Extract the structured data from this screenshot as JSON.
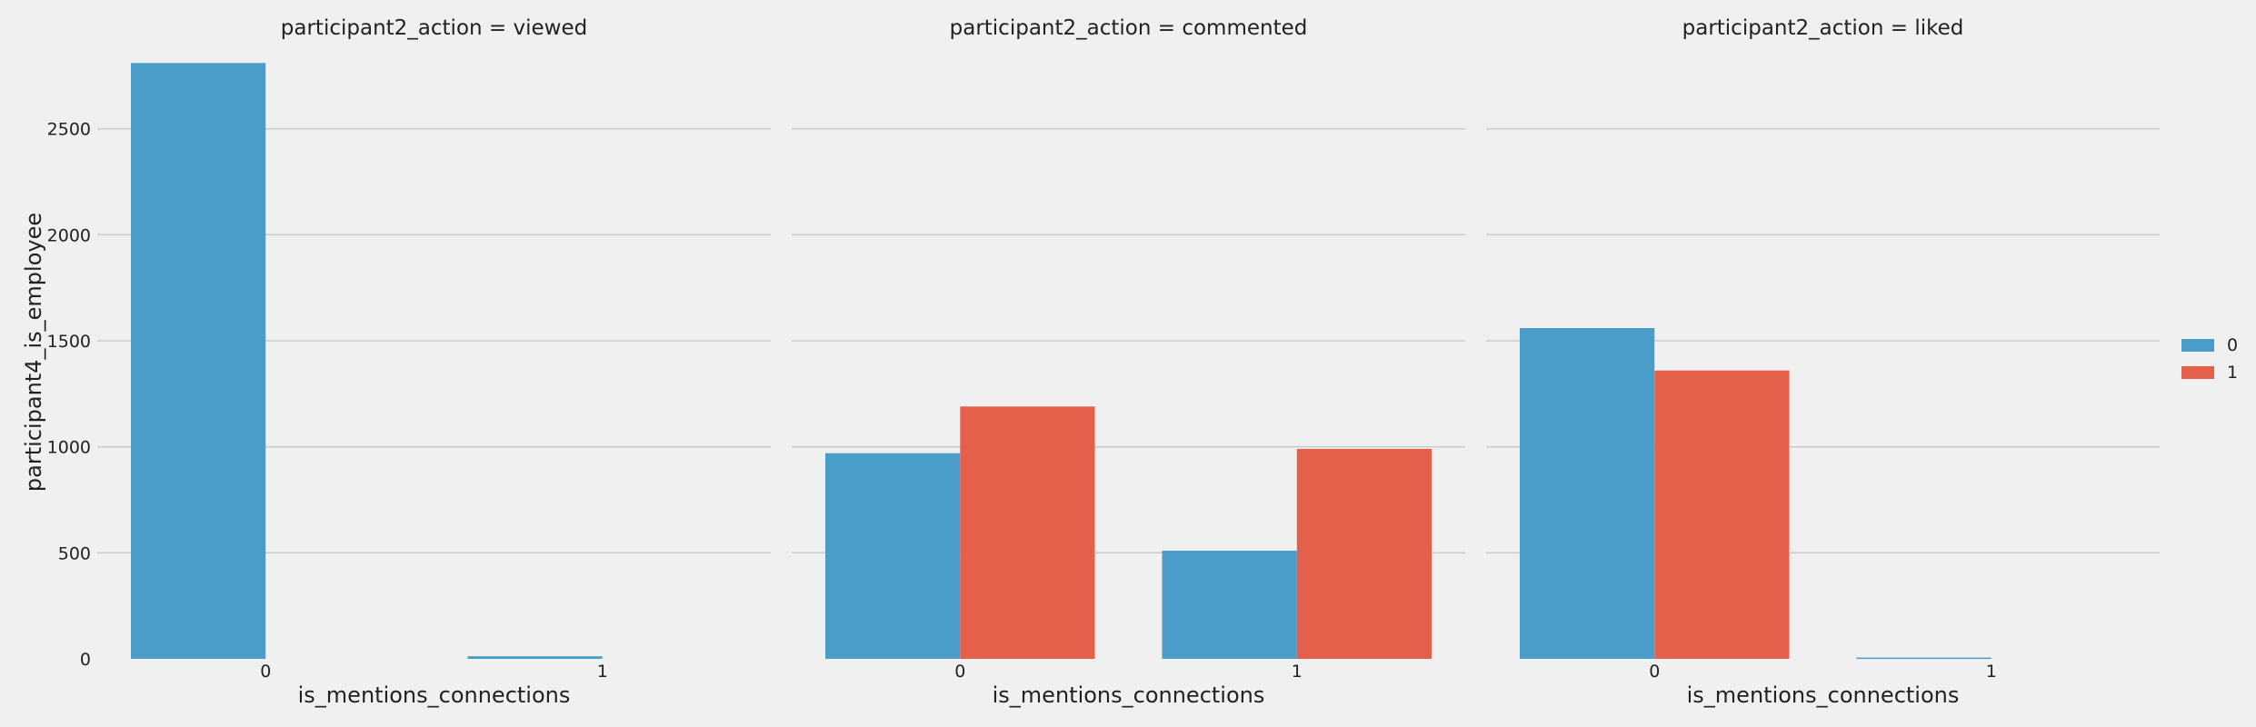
{
  "chart_data": {
    "type": "bar",
    "ylabel": "participant4_is_employee",
    "ylim": [
      0,
      2800
    ],
    "yticks": [
      0,
      500,
      1000,
      1500,
      2000,
      2500
    ],
    "grid": "horizontal",
    "legend": {
      "placement": "right",
      "entries": [
        {
          "label": "0",
          "color": "#4a9cc9"
        },
        {
          "label": "1",
          "color": "#e5604a"
        }
      ]
    },
    "panels": [
      {
        "title": "participant2_action = viewed",
        "xlabel": "is_mentions_connections",
        "categories": [
          "0",
          "1"
        ],
        "series": [
          {
            "name": "0",
            "values": [
              2810,
              12
            ]
          }
        ]
      },
      {
        "title": "participant2_action = commented",
        "xlabel": "is_mentions_connections",
        "categories": [
          "0",
          "1"
        ],
        "series": [
          {
            "name": "0",
            "values": [
              970,
              510
            ]
          },
          {
            "name": "1",
            "values": [
              1190,
              990
            ]
          }
        ]
      },
      {
        "title": "participant2_action = liked",
        "xlabel": "is_mentions_connections",
        "categories": [
          "0",
          "1"
        ],
        "series": [
          {
            "name": "0",
            "values": [
              1560,
              6
            ]
          },
          {
            "name": "1",
            "values": [
              1360,
              0
            ]
          }
        ]
      }
    ]
  }
}
